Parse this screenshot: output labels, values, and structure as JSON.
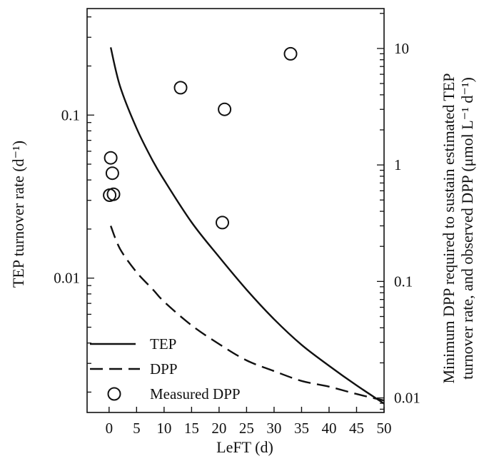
{
  "chart_data": {
    "type": "line",
    "xlabel": "LeFT (d)",
    "ylabel_left": "TEP turnover rate (d⁻¹)",
    "ylabel_right_line1": "Minimum DPP required to sustain estimated TEP",
    "ylabel_right_line2": "turnover rate, and observed DPP (μmol L⁻¹ d⁻¹)",
    "xlim": [
      -4,
      50
    ],
    "ylim_left": [
      0.0015,
      0.45
    ],
    "ylim_right": [
      0.0075,
      22
    ],
    "y_left_scale": "log",
    "y_right_scale": "log",
    "x_ticks": [
      0,
      5,
      10,
      15,
      20,
      25,
      30,
      35,
      40,
      45,
      50
    ],
    "x_tick_labels": [
      "0",
      "5",
      "10",
      "15",
      "20",
      "25",
      "30",
      "35",
      "40",
      "45",
      "50"
    ],
    "y_left_ticks": [
      0.01,
      0.1
    ],
    "y_left_tick_labels": [
      "0.01",
      "0.1"
    ],
    "y_right_ticks": [
      0.01,
      0.1,
      1,
      10
    ],
    "y_right_tick_labels": [
      "0.01",
      "0.1",
      "1",
      "10"
    ],
    "grid": false,
    "legend_position": "bottom-left",
    "series": [
      {
        "name": "TEP",
        "axis": "left",
        "style": "solid",
        "x": [
          0.3,
          2,
          5,
          8,
          10,
          15,
          20,
          25,
          30,
          35,
          40,
          45,
          50
        ],
        "y": [
          0.26,
          0.15,
          0.083,
          0.052,
          0.04,
          0.022,
          0.0135,
          0.0085,
          0.0056,
          0.0039,
          0.0029,
          0.0022,
          0.0017
        ]
      },
      {
        "name": "DPP",
        "axis": "right",
        "style": "dashed",
        "x": [
          0.3,
          2,
          5,
          8,
          10,
          15,
          20,
          25,
          30,
          35,
          40,
          45,
          50
        ],
        "y": [
          0.3,
          0.19,
          0.12,
          0.085,
          0.067,
          0.042,
          0.029,
          0.021,
          0.017,
          0.014,
          0.0125,
          0.0108,
          0.0095
        ]
      },
      {
        "name": "Measured DPP",
        "axis": "right",
        "style": "open-circle",
        "x": [
          0.1,
          0.3,
          0.6,
          0.8,
          13,
          21,
          20.6,
          33
        ],
        "y": [
          0.55,
          1.15,
          0.85,
          0.56,
          4.6,
          3.0,
          0.32,
          9.0
        ]
      }
    ],
    "legend": [
      {
        "label": "TEP",
        "style": "solid"
      },
      {
        "label": "DPP",
        "style": "dashed"
      },
      {
        "label": "Measured DPP",
        "style": "open-circle"
      }
    ]
  }
}
